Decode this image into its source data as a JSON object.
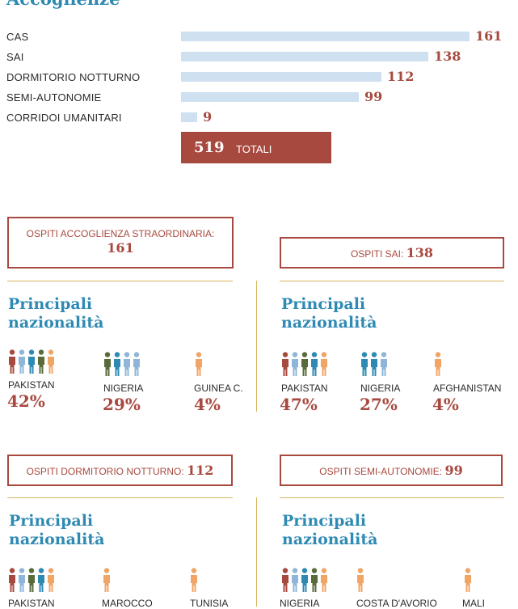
{
  "chart_data": {
    "type": "bar",
    "title": "Accoglienze",
    "categories": [
      "CAS",
      "SAI",
      "DORMITORIO NOTTURNO",
      "SEMI-AUTONOMIE",
      "CORRIDOI UMANITARI"
    ],
    "values": [
      161,
      138,
      112,
      99,
      9
    ],
    "xlim": [
      0,
      161
    ],
    "total": {
      "value": 519,
      "label": "TOTALI"
    }
  },
  "colors": {
    "accent_blue": "#2f8ab3",
    "accent_red": "#a8493f",
    "bar": "#cfe0f1",
    "rule": "#d7b35b",
    "people": [
      "#a8493f",
      "#8fb6d8",
      "#2f8ab3",
      "#5a6b3a",
      "#f0a565"
    ]
  },
  "sections": [
    {
      "header": "OSPITI ACCOGLIENZA STRAORDINARIA:",
      "value": "161",
      "title_line1": "Principali",
      "title_line2": "nazionalità",
      "nationalities": [
        {
          "name": "PAKISTAN",
          "pct": "42%",
          "icons": [
            "#a8493f",
            "#8fb6d8",
            "#2f8ab3",
            "#5a6b3a",
            "#f0a565"
          ]
        },
        {
          "name": "NIGERIA",
          "pct": "29%",
          "icons": [
            "#5a6b3a",
            "#2f8ab3",
            "#8fb6d8",
            "#8fb6d8"
          ]
        },
        {
          "name": "GUINEA C.",
          "pct": "4%",
          "icons": [
            "#f0a565"
          ]
        }
      ]
    },
    {
      "header": "OSPITI SAI:",
      "value": "138",
      "title_line1": "Principali",
      "title_line2": "nazionalità",
      "nationalities": [
        {
          "name": "PAKISTAN",
          "pct": "47%",
          "icons": [
            "#a8493f",
            "#8fb6d8",
            "#5a6b3a",
            "#2f8ab3",
            "#f0a565"
          ]
        },
        {
          "name": "NIGERIA",
          "pct": "27%",
          "icons": [
            "#2f8ab3",
            "#2f8ab3",
            "#8fb6d8"
          ]
        },
        {
          "name": "AFGHANISTAN",
          "pct": "4%",
          "icons": [
            "#f0a565"
          ]
        }
      ]
    },
    {
      "header": "OSPITI DORMITORIO NOTTURNO:",
      "value": "112",
      "title_line1": "Principali",
      "title_line2": "nazionalità",
      "nationalities": [
        {
          "name": "PAKISTAN",
          "icons": [
            "#a8493f",
            "#8fb6d8",
            "#5a6b3a",
            "#2f8ab3",
            "#f0a565"
          ]
        },
        {
          "name": "MAROCCO",
          "icons": [
            "#f0a565"
          ]
        },
        {
          "name": "TUNISIA",
          "icons": [
            "#f0a565"
          ]
        }
      ]
    },
    {
      "header": "OSPITI SEMI-AUTONOMIE:",
      "value": "99",
      "title_line1": "Principali",
      "title_line2": "nazionalità",
      "nationalities": [
        {
          "name": "NIGERIA",
          "icons": [
            "#a8493f",
            "#8fb6d8",
            "#2f8ab3",
            "#5a6b3a",
            "#f0a565"
          ]
        },
        {
          "name": "COSTA D'AVORIO",
          "icons": [
            "#f0a565"
          ]
        },
        {
          "name": "MALI",
          "icons": [
            "#f0a565"
          ]
        }
      ]
    }
  ]
}
